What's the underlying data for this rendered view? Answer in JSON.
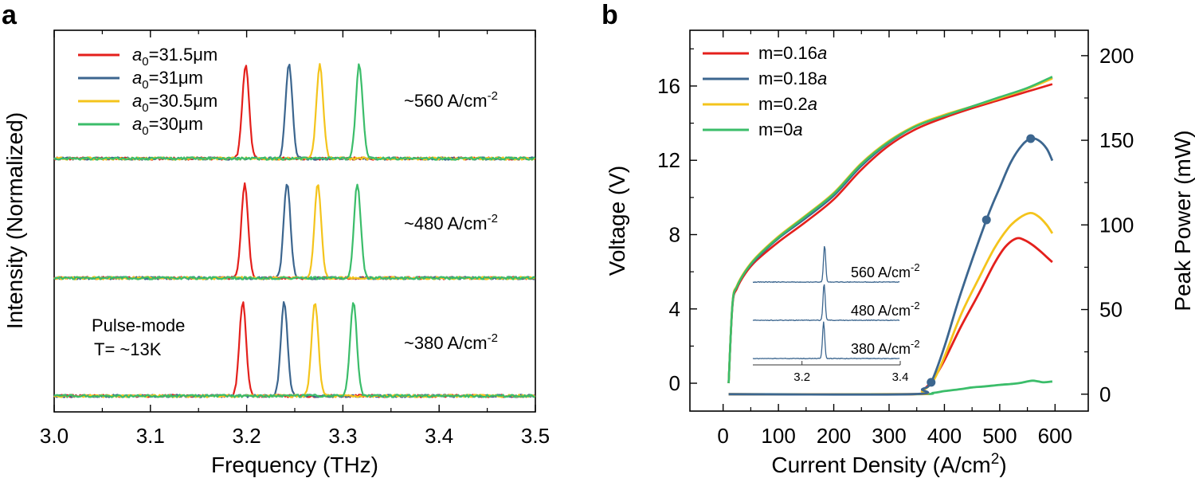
{
  "chart_data": [
    {
      "type": "line",
      "panel_label": "a",
      "xlabel": "Frequency (THz)",
      "ylabel": "Intensity (Normalized)",
      "xlim": [
        3.0,
        3.5
      ],
      "x_ticks": [
        "3.0",
        "3.1",
        "3.2",
        "3.3",
        "3.4",
        "3.5"
      ],
      "y_ticks_labeled": false,
      "colors": {
        "red": "#e4201c",
        "blue": "#3c668f",
        "yellow": "#f4c41c",
        "green": "#3bbd6a"
      },
      "legend": {
        "placement": "top-left",
        "entries": [
          {
            "sym": "a",
            "sub": "0",
            "rest": "=31.5μm",
            "color": "#e4201c"
          },
          {
            "sym": "a",
            "sub": "0",
            "rest": "=31μm",
            "color": "#3c668f"
          },
          {
            "sym": "a",
            "sub": "0",
            "rest": "=30.5μm",
            "color": "#f4c41c"
          },
          {
            "sym": "a",
            "sub": "0",
            "rest": "=30μm",
            "color": "#3bbd6a"
          }
        ]
      },
      "notes": {
        "line1": "Pulse-mode",
        "line2": "T= ~13K"
      },
      "spectra": [
        {
          "label_main": "~560 A/cm",
          "label_sup": "-2",
          "peaks_thz": [
            3.199,
            3.244,
            3.276,
            3.317
          ]
        },
        {
          "label_main": "~480 A/cm",
          "label_sup": "-2",
          "peaks_thz": [
            3.198,
            3.242,
            3.274,
            3.315
          ]
        },
        {
          "label_main": "~380 A/cm",
          "label_sup": "-2",
          "peaks_thz": [
            3.196,
            3.239,
            3.271,
            3.311
          ]
        }
      ]
    },
    {
      "type": "line",
      "panel_label": "b",
      "xlabel_main": "Current Density (A/cm",
      "xlabel_sup": "2",
      "xlabel_end": ")",
      "ylabel": "Voltage (V)",
      "y2label": "Peak Power (mW)",
      "xlim": [
        -60,
        660
      ],
      "ylim": [
        -1.5,
        19
      ],
      "y2lim": [
        -10,
        215
      ],
      "x_ticks": [
        "0",
        "100",
        "200",
        "300",
        "400",
        "500",
        "600"
      ],
      "y_ticks": [
        "0",
        "4",
        "8",
        "12",
        "16"
      ],
      "y2_ticks": [
        "0",
        "50",
        "100",
        "150",
        "200"
      ],
      "legend": {
        "placement": "top-left",
        "entries": [
          {
            "sym_prefix": "m=0.16",
            "sym": "a",
            "color": "#e4201c"
          },
          {
            "sym_prefix": "m=0.18",
            "sym": "a",
            "color": "#3c668f"
          },
          {
            "sym_prefix": "m=0.2",
            "sym": "a",
            "color": "#f4c41c"
          },
          {
            "sym_prefix": "m=0",
            "sym": "a",
            "color": "#3bbd6a"
          }
        ]
      },
      "voltage_series": [
        {
          "name": "m=0.16a",
          "color": "#e4201c",
          "points": [
            [
              10,
              0
            ],
            [
              17,
              4.2
            ],
            [
              25,
              5.1
            ],
            [
              40,
              5.9
            ],
            [
              60,
              6.6
            ],
            [
              100,
              7.6
            ],
            [
              150,
              8.7
            ],
            [
              200,
              9.9
            ],
            [
              250,
              11.5
            ],
            [
              300,
              12.8
            ],
            [
              350,
              13.7
            ],
            [
              400,
              14.3
            ],
            [
              450,
              14.8
            ],
            [
              500,
              15.25
            ],
            [
              550,
              15.7
            ],
            [
              595,
              16.1
            ]
          ]
        },
        {
          "name": "m=0.18a",
          "color": "#3c668f",
          "points": [
            [
              10,
              0
            ],
            [
              17,
              4.3
            ],
            [
              25,
              5.2
            ],
            [
              40,
              6.0
            ],
            [
              60,
              6.7
            ],
            [
              100,
              7.8
            ],
            [
              150,
              8.9
            ],
            [
              200,
              10.1
            ],
            [
              250,
              11.7
            ],
            [
              300,
              12.95
            ],
            [
              350,
              13.85
            ],
            [
              400,
              14.4
            ],
            [
              450,
              14.9
            ],
            [
              500,
              15.35
            ],
            [
              550,
              15.85
            ],
            [
              595,
              16.45
            ]
          ]
        },
        {
          "name": "m=0.2a",
          "color": "#f4c41c",
          "points": [
            [
              10,
              0
            ],
            [
              17,
              4.35
            ],
            [
              25,
              5.25
            ],
            [
              40,
              6.05
            ],
            [
              60,
              6.8
            ],
            [
              100,
              7.9
            ],
            [
              150,
              9.05
            ],
            [
              200,
              10.25
            ],
            [
              250,
              11.85
            ],
            [
              300,
              13.05
            ],
            [
              350,
              13.9
            ],
            [
              400,
              14.45
            ],
            [
              450,
              14.9
            ],
            [
              500,
              15.35
            ],
            [
              550,
              15.85
            ],
            [
              595,
              16.4
            ]
          ]
        },
        {
          "name": "m=0a",
          "color": "#3bbd6a",
          "points": [
            [
              10,
              0
            ],
            [
              17,
              4.3
            ],
            [
              25,
              5.2
            ],
            [
              40,
              6.0
            ],
            [
              60,
              6.75
            ],
            [
              100,
              7.85
            ],
            [
              150,
              9.0
            ],
            [
              200,
              10.2
            ],
            [
              250,
              11.8
            ],
            [
              300,
              13.0
            ],
            [
              350,
              13.85
            ],
            [
              400,
              14.4
            ],
            [
              450,
              14.9
            ],
            [
              500,
              15.4
            ],
            [
              550,
              15.9
            ],
            [
              595,
              16.5
            ]
          ]
        }
      ],
      "power_series": [
        {
          "name": "m=0.16a",
          "color": "#e4201c",
          "points": [
            [
              10,
              0
            ],
            [
              340,
              0
            ],
            [
              360,
              2
            ],
            [
              380,
              9
            ],
            [
              400,
              20
            ],
            [
              430,
              40
            ],
            [
              460,
              58
            ],
            [
              490,
              77
            ],
            [
              510,
              87
            ],
            [
              530,
              92
            ],
            [
              545,
              91
            ],
            [
              560,
              88
            ],
            [
              575,
              84
            ],
            [
              585,
              81
            ],
            [
              595,
              78
            ]
          ]
        },
        {
          "name": "m=0.18a",
          "color": "#3c668f",
          "points": [
            [
              10,
              0
            ],
            [
              340,
              0
            ],
            [
              360,
              3
            ],
            [
              376,
              7
            ],
            [
              400,
              28
            ],
            [
              430,
              60
            ],
            [
              476,
              103
            ],
            [
              500,
              122
            ],
            [
              520,
              137
            ],
            [
              540,
              147
            ],
            [
              556,
              151
            ],
            [
              570,
              150
            ],
            [
              585,
              145
            ],
            [
              595,
              138
            ]
          ]
        },
        {
          "name": "m=0.2a",
          "color": "#f4c41c",
          "points": [
            [
              10,
              0
            ],
            [
              340,
              0
            ],
            [
              360,
              2
            ],
            [
              380,
              8
            ],
            [
              400,
              22
            ],
            [
              430,
              47
            ],
            [
              460,
              67
            ],
            [
              490,
              86
            ],
            [
              515,
              98
            ],
            [
              535,
              104
            ],
            [
              555,
              107
            ],
            [
              570,
              105
            ],
            [
              585,
              100
            ],
            [
              595,
              95
            ]
          ]
        },
        {
          "name": "m=0a",
          "color": "#3bbd6a",
          "points": [
            [
              10,
              0
            ],
            [
              340,
              0
            ],
            [
              380,
              0.8
            ],
            [
              400,
              1.8
            ],
            [
              430,
              3
            ],
            [
              450,
              4
            ],
            [
              470,
              4.5
            ],
            [
              500,
              5.5
            ],
            [
              520,
              6
            ],
            [
              535,
              6.5
            ],
            [
              550,
              7.5
            ],
            [
              560,
              8
            ],
            [
              570,
              7.5
            ],
            [
              580,
              7
            ],
            [
              595,
              7.5
            ]
          ]
        }
      ],
      "markers": [
        {
          "x": 376,
          "y": 7,
          "axis": "power"
        },
        {
          "x": 476,
          "y": 103,
          "axis": "power"
        },
        {
          "x": 556,
          "y": 151,
          "axis": "power"
        }
      ],
      "inset": {
        "xlim": [
          3.1,
          3.4
        ],
        "x_ticks": [
          "3.2",
          "3.4"
        ],
        "x_tick_values": [
          3.2,
          3.4
        ],
        "color": "#3c668f",
        "spectra": [
          {
            "label_main": "560 A/cm",
            "label_sup": "-2",
            "peak_thz": 3.246
          },
          {
            "label_main": "480 A/cm",
            "label_sup": "-2",
            "peak_thz": 3.245
          },
          {
            "label_main": "380 A/cm",
            "label_sup": "-2",
            "peak_thz": 3.244
          }
        ]
      }
    }
  ]
}
